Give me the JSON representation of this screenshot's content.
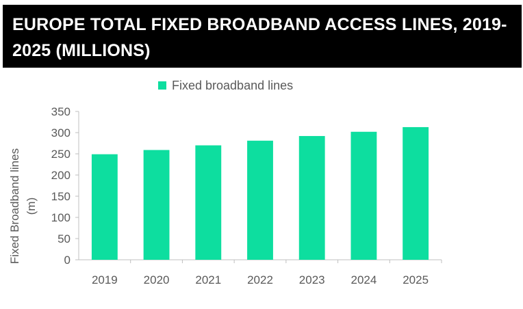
{
  "title": "EUROPE TOTAL FIXED BROADBAND ACCESS LINES, 2019-2025 (MILLIONS)",
  "colors": {
    "bar": "#0DDE9F",
    "axis": "#BFBFBF",
    "text": "#595959",
    "title_bg": "#000000",
    "title_text": "#FFFFFF"
  },
  "chart_data": {
    "type": "bar",
    "title": "EUROPE TOTAL FIXED BROADBAND ACCESS LINES, 2019-2025 (MILLIONS)",
    "categories": [
      "2019",
      "2020",
      "2021",
      "2022",
      "2023",
      "2024",
      "2025"
    ],
    "series": [
      {
        "name": "Fixed broadband lines",
        "values": [
          249,
          259,
          270,
          281,
          292,
          302,
          313
        ]
      }
    ],
    "xlabel": "",
    "ylabel": "Fixed Broadband lines (m)",
    "ylabel_lines": [
      "Fixed Broadband lines",
      "(m)"
    ],
    "yticks": [
      0,
      50,
      100,
      150,
      200,
      250,
      300,
      350
    ],
    "ylim": [
      0,
      350
    ],
    "grid": false,
    "legend_position": "top-center"
  }
}
